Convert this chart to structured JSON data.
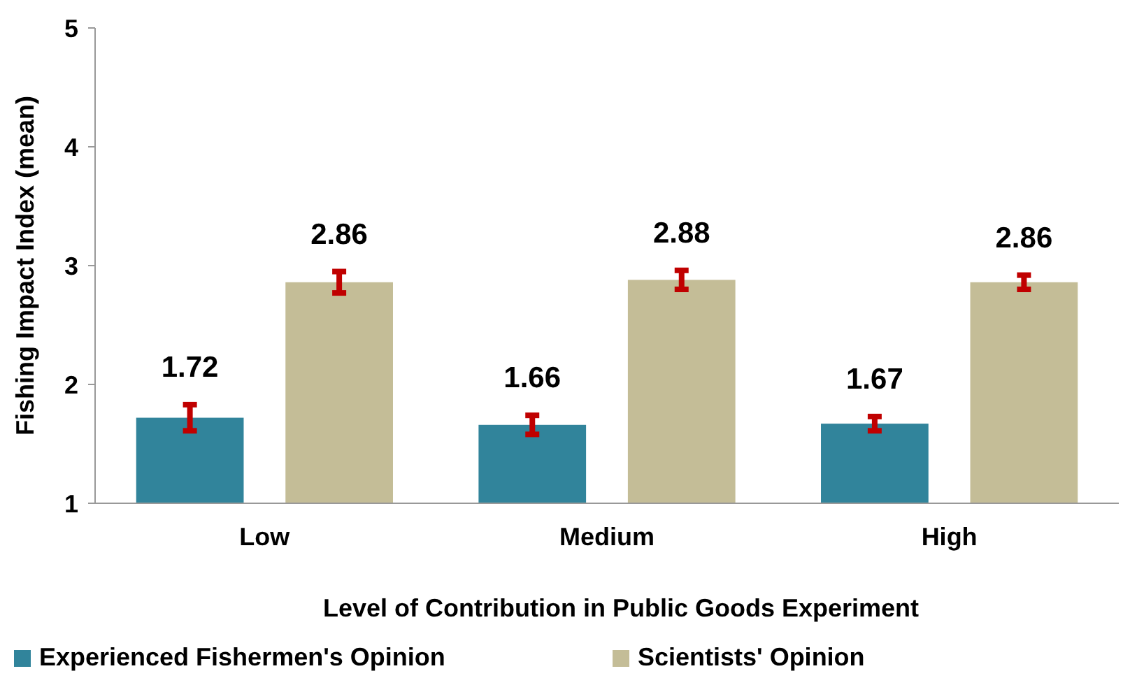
{
  "chart_data": {
    "type": "bar",
    "xlabel": "Level of Contribution in Public Goods Experiment",
    "ylabel": "Fishing Impact Index  (mean)",
    "categories": [
      "Low",
      "Medium",
      "High"
    ],
    "series": [
      {
        "name": "Experienced Fishermen's Opinion",
        "color": "#31849b",
        "values": [
          1.72,
          1.66,
          1.67
        ],
        "errors": [
          0.11,
          0.08,
          0.06
        ]
      },
      {
        "name": "Scientists' Opinion",
        "color": "#c4bd97",
        "values": [
          2.86,
          2.88,
          2.86
        ],
        "errors": [
          0.09,
          0.08,
          0.06
        ]
      }
    ],
    "ylim": [
      1,
      5
    ],
    "yticks": [
      1,
      2,
      3,
      4,
      5
    ],
    "data_labels": true,
    "grid": false,
    "legend": "bottom"
  }
}
